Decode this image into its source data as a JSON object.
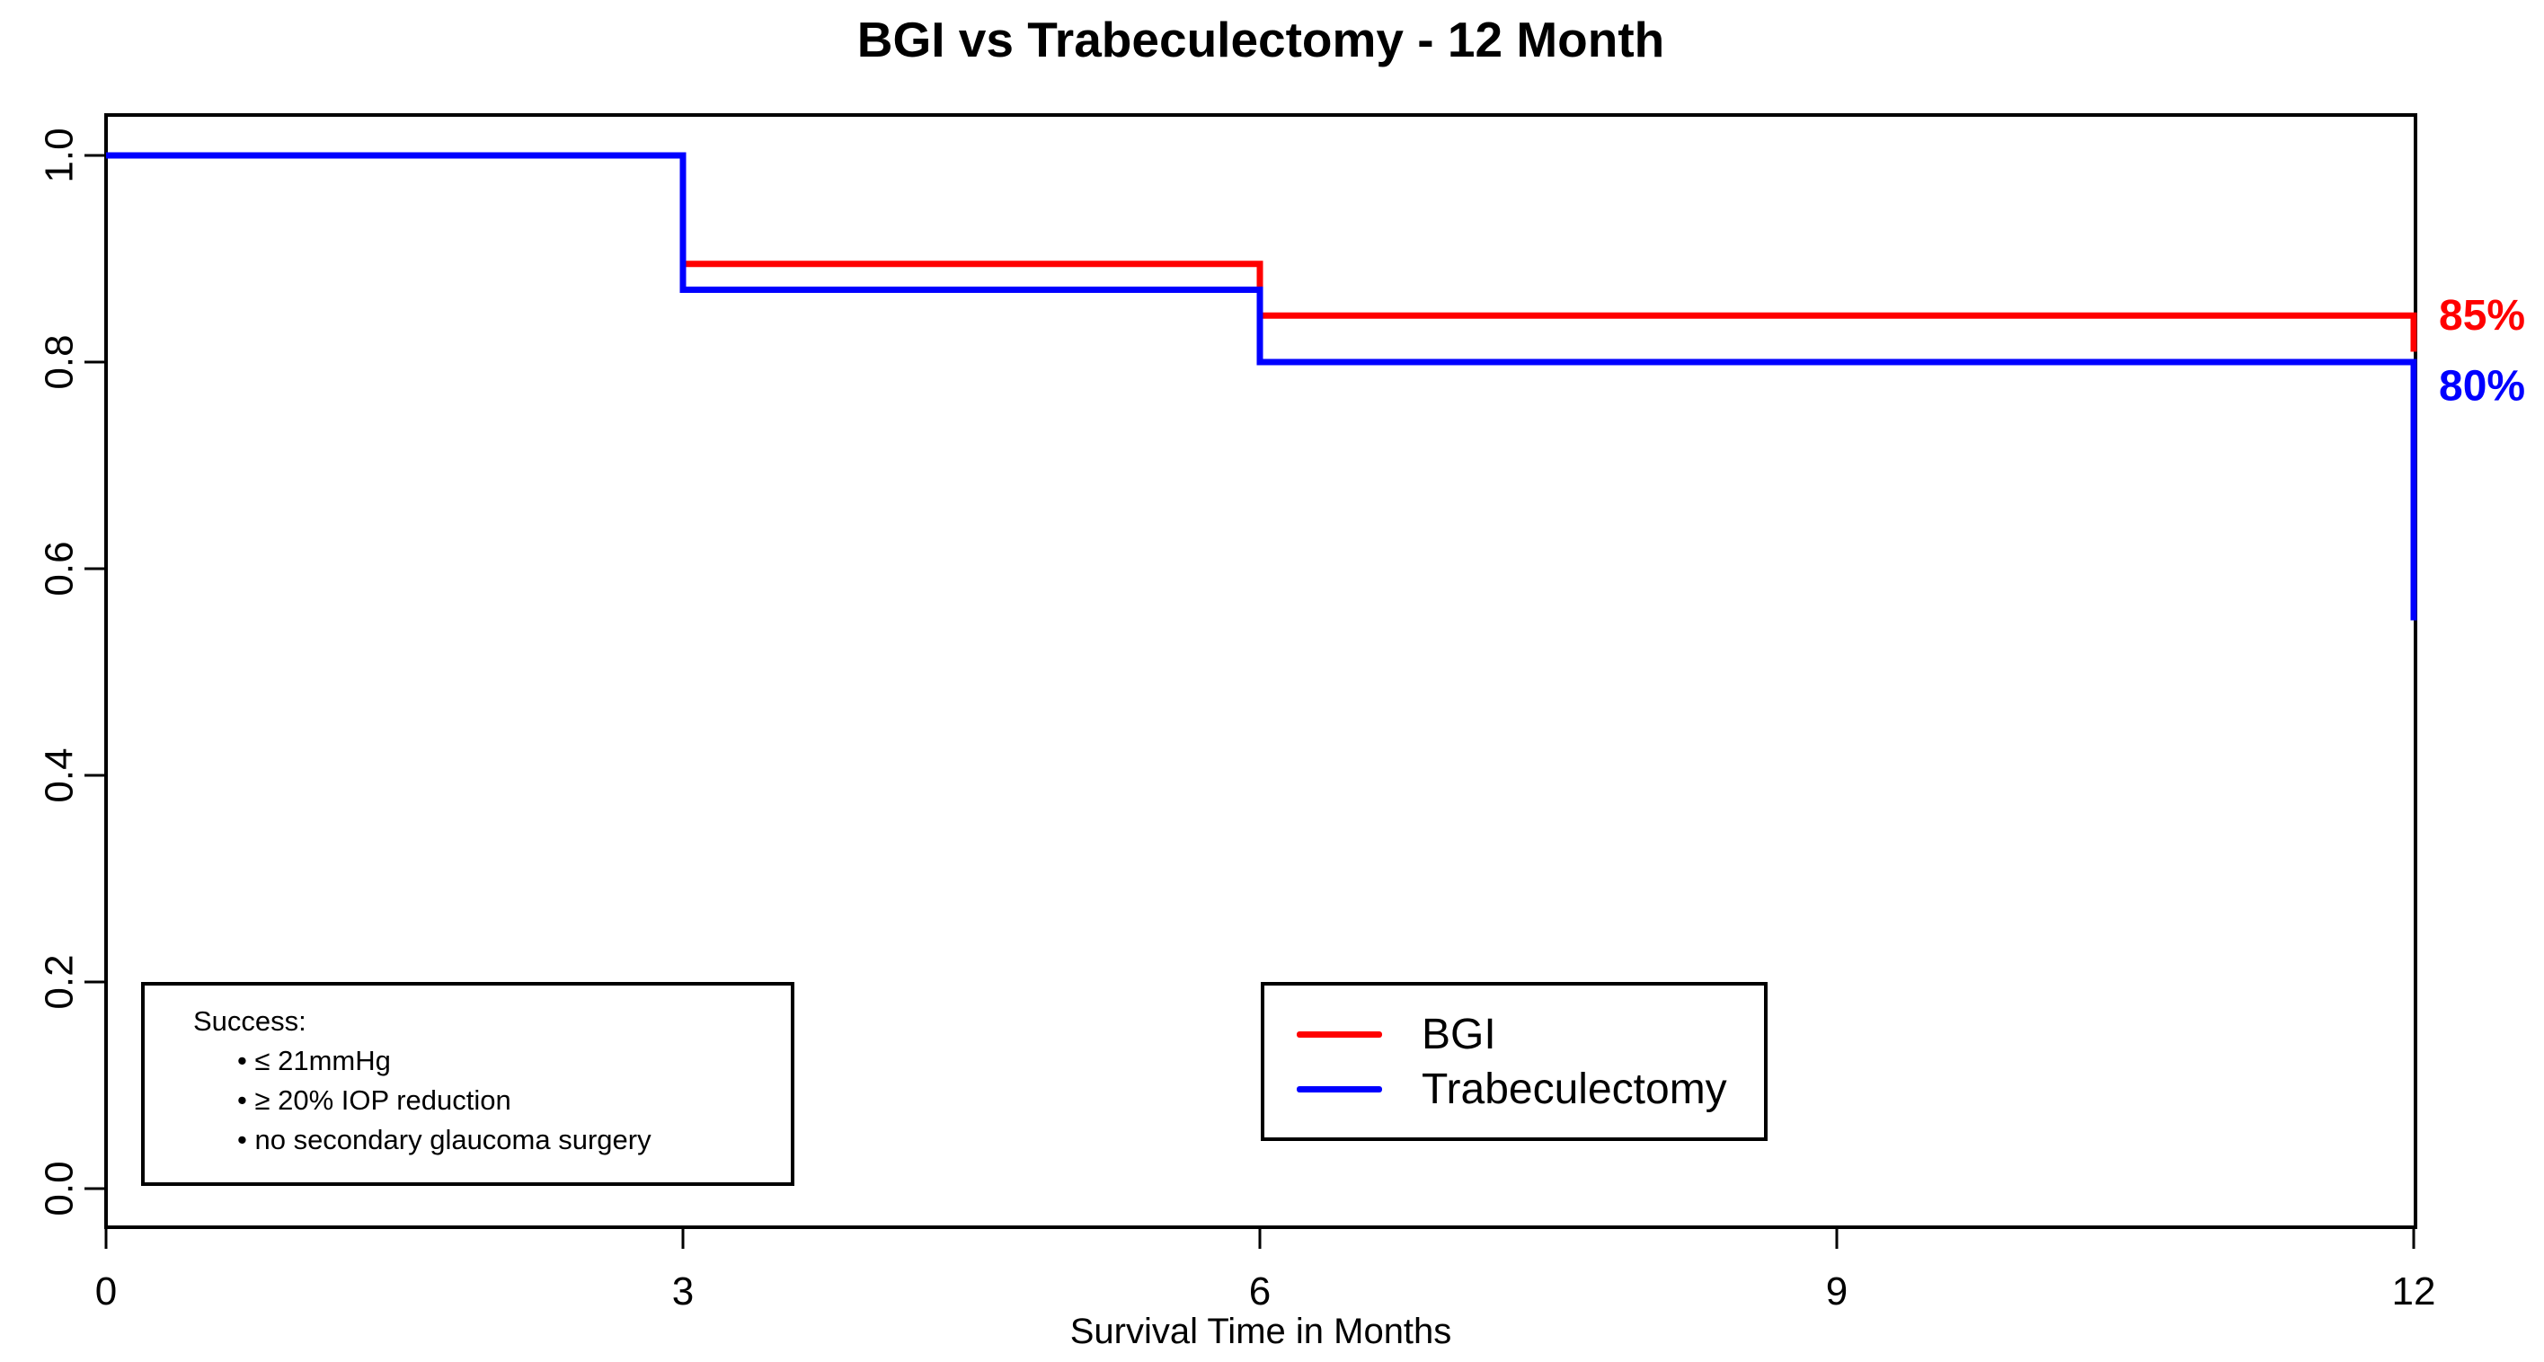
{
  "chart_data": {
    "type": "line",
    "subtype": "kaplan-meier-step",
    "title": "BGI vs Trabeculectomy - 12 Month",
    "xlabel": "Survival Time in Months",
    "ylabel": "",
    "xlim": [
      0,
      12
    ],
    "ylim": [
      0.0,
      1.0
    ],
    "xticks": [
      0,
      3,
      6,
      9,
      12
    ],
    "yticks": [
      {
        "value": 0.0,
        "label": "0.0"
      },
      {
        "value": 0.2,
        "label": "0.2"
      },
      {
        "value": 0.4,
        "label": "0.4"
      },
      {
        "value": 0.6,
        "label": "0.6"
      },
      {
        "value": 0.8,
        "label": "0.8"
      },
      {
        "value": 1.0,
        "label": "1.0"
      }
    ],
    "grid": false,
    "legend_position": "bottom-center",
    "series": [
      {
        "name": "BGI",
        "color": "#ff0000",
        "end_label": "85%",
        "step_points": [
          [
            0,
            1.0
          ],
          [
            3,
            1.0
          ],
          [
            3,
            0.895
          ],
          [
            6,
            0.895
          ],
          [
            6,
            0.845
          ],
          [
            12,
            0.845
          ],
          [
            12,
            0.81
          ]
        ]
      },
      {
        "name": "Trabeculectomy",
        "color": "#0000ff",
        "end_label": "80%",
        "step_points": [
          [
            0,
            1.0
          ],
          [
            3,
            1.0
          ],
          [
            3,
            0.87
          ],
          [
            6,
            0.87
          ],
          [
            6,
            0.8
          ],
          [
            12,
            0.8
          ],
          [
            12,
            0.55
          ]
        ]
      }
    ],
    "annotation_box": {
      "title": "Success:",
      "bullets": [
        "≤ 21mmHg",
        "≥ 20% IOP reduction",
        "no secondary glaucoma surgery"
      ]
    }
  }
}
